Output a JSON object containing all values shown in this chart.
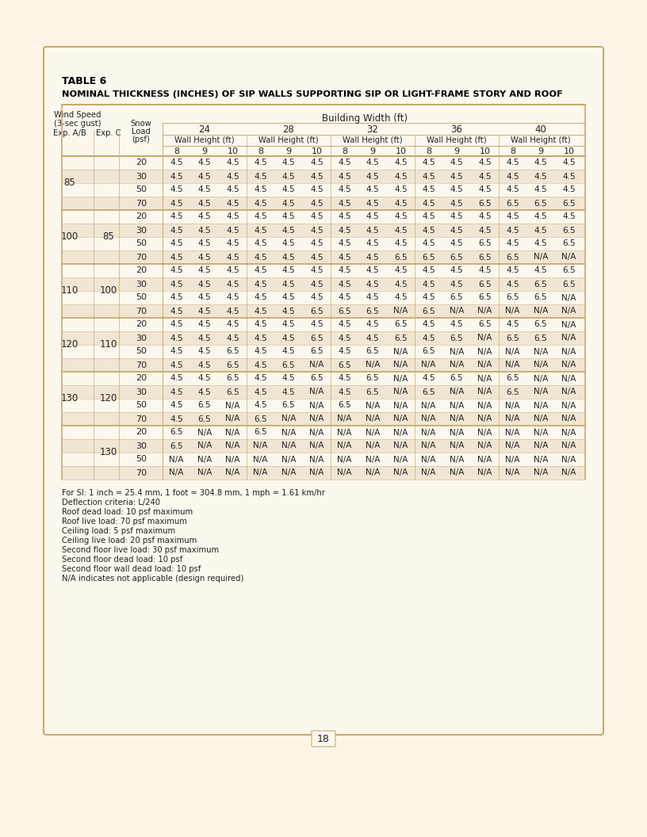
{
  "title": "TABLE 6",
  "subtitle": "NOMINAL THICKNESS (INCHES) OF SIP WALLS SUPPORTING SIP OR LIGHT-FRAME STORY AND ROOF",
  "building_widths": [
    "24",
    "28",
    "32",
    "36",
    "40"
  ],
  "bg_color": "#fdf8ee",
  "border_color": "#c8a96e",
  "row_alt_color": "#f0e6d3",
  "text_color": "#222222",
  "rows": [
    {
      "wind_a": "85",
      "wind_b": "",
      "snow": "20",
      "data": [
        "4.5",
        "4.5",
        "4.5",
        "4.5",
        "4.5",
        "4.5",
        "4.5",
        "4.5",
        "4.5",
        "4.5",
        "4.5",
        "4.5",
        "4.5",
        "4.5",
        "4.5"
      ]
    },
    {
      "wind_a": "",
      "wind_b": "",
      "snow": "30",
      "data": [
        "4.5",
        "4.5",
        "4.5",
        "4.5",
        "4.5",
        "4.5",
        "4.5",
        "4.5",
        "4.5",
        "4.5",
        "4.5",
        "4.5",
        "4.5",
        "4.5",
        "4.5"
      ]
    },
    {
      "wind_a": "",
      "wind_b": "",
      "snow": "50",
      "data": [
        "4.5",
        "4.5",
        "4.5",
        "4.5",
        "4.5",
        "4.5",
        "4.5",
        "4.5",
        "4.5",
        "4.5",
        "4.5",
        "4.5",
        "4.5",
        "4.5",
        "4.5"
      ]
    },
    {
      "wind_a": "",
      "wind_b": "",
      "snow": "70",
      "data": [
        "4.5",
        "4.5",
        "4.5",
        "4.5",
        "4.5",
        "4.5",
        "4.5",
        "4.5",
        "4.5",
        "4.5",
        "4.5",
        "6.5",
        "6.5",
        "6.5",
        "6.5"
      ]
    },
    {
      "wind_a": "100",
      "wind_b": "85",
      "snow": "20",
      "data": [
        "4.5",
        "4.5",
        "4.5",
        "4.5",
        "4.5",
        "4.5",
        "4.5",
        "4.5",
        "4.5",
        "4.5",
        "4.5",
        "4.5",
        "4.5",
        "4.5",
        "4.5"
      ]
    },
    {
      "wind_a": "",
      "wind_b": "",
      "snow": "30",
      "data": [
        "4.5",
        "4.5",
        "4.5",
        "4.5",
        "4.5",
        "4.5",
        "4.5",
        "4.5",
        "4.5",
        "4.5",
        "4.5",
        "4.5",
        "4.5",
        "4.5",
        "6.5"
      ]
    },
    {
      "wind_a": "",
      "wind_b": "",
      "snow": "50",
      "data": [
        "4.5",
        "4.5",
        "4.5",
        "4.5",
        "4.5",
        "4.5",
        "4.5",
        "4.5",
        "4.5",
        "4.5",
        "4.5",
        "6.5",
        "4.5",
        "4.5",
        "6.5"
      ]
    },
    {
      "wind_a": "",
      "wind_b": "",
      "snow": "70",
      "data": [
        "4.5",
        "4.5",
        "4.5",
        "4.5",
        "4.5",
        "4.5",
        "4.5",
        "4.5",
        "6.5",
        "6.5",
        "6.5",
        "6.5",
        "6.5",
        "N/A",
        "N/A"
      ]
    },
    {
      "wind_a": "110",
      "wind_b": "100",
      "snow": "20",
      "data": [
        "4.5",
        "4.5",
        "4.5",
        "4.5",
        "4.5",
        "4.5",
        "4.5",
        "4.5",
        "4.5",
        "4.5",
        "4.5",
        "4.5",
        "4.5",
        "4.5",
        "6.5"
      ]
    },
    {
      "wind_a": "",
      "wind_b": "",
      "snow": "30",
      "data": [
        "4.5",
        "4.5",
        "4.5",
        "4.5",
        "4.5",
        "4.5",
        "4.5",
        "4.5",
        "4.5",
        "4.5",
        "4.5",
        "6.5",
        "4.5",
        "6.5",
        "6.5"
      ]
    },
    {
      "wind_a": "",
      "wind_b": "",
      "snow": "50",
      "data": [
        "4.5",
        "4.5",
        "4.5",
        "4.5",
        "4.5",
        "4.5",
        "4.5",
        "4.5",
        "4.5",
        "4.5",
        "6.5",
        "6.5",
        "6.5",
        "6.5",
        "N/A"
      ]
    },
    {
      "wind_a": "",
      "wind_b": "",
      "snow": "70",
      "data": [
        "4.5",
        "4.5",
        "4.5",
        "4.5",
        "4.5",
        "6.5",
        "6.5",
        "6.5",
        "N/A",
        "6.5",
        "N/A",
        "N/A",
        "N/A",
        "N/A",
        "N/A"
      ]
    },
    {
      "wind_a": "120",
      "wind_b": "110",
      "snow": "20",
      "data": [
        "4.5",
        "4.5",
        "4.5",
        "4.5",
        "4.5",
        "4.5",
        "4.5",
        "4.5",
        "6.5",
        "4.5",
        "4.5",
        "6.5",
        "4.5",
        "6.5",
        "N/A"
      ]
    },
    {
      "wind_a": "",
      "wind_b": "",
      "snow": "30",
      "data": [
        "4.5",
        "4.5",
        "4.5",
        "4.5",
        "4.5",
        "6.5",
        "4.5",
        "4.5",
        "6.5",
        "4.5",
        "6.5",
        "N/A",
        "6.5",
        "6.5",
        "N/A"
      ]
    },
    {
      "wind_a": "",
      "wind_b": "",
      "snow": "50",
      "data": [
        "4.5",
        "4.5",
        "6.5",
        "4.5",
        "4.5",
        "6.5",
        "4.5",
        "6.5",
        "N/A",
        "6.5",
        "N/A",
        "N/A",
        "N/A",
        "N/A",
        "N/A"
      ]
    },
    {
      "wind_a": "",
      "wind_b": "",
      "snow": "70",
      "data": [
        "4.5",
        "4.5",
        "6.5",
        "4.5",
        "6.5",
        "N/A",
        "6.5",
        "N/A",
        "N/A",
        "N/A",
        "N/A",
        "N/A",
        "N/A",
        "N/A",
        "N/A"
      ]
    },
    {
      "wind_a": "130",
      "wind_b": "120",
      "snow": "20",
      "data": [
        "4.5",
        "4.5",
        "6.5",
        "4.5",
        "4.5",
        "6.5",
        "4.5",
        "6.5",
        "N/A",
        "4.5",
        "6.5",
        "N/A",
        "6.5",
        "N/A",
        "N/A"
      ]
    },
    {
      "wind_a": "",
      "wind_b": "",
      "snow": "30",
      "data": [
        "4.5",
        "4.5",
        "6.5",
        "4.5",
        "4.5",
        "N/A",
        "4.5",
        "6.5",
        "N/A",
        "6.5",
        "N/A",
        "N/A",
        "6.5",
        "N/A",
        "N/A"
      ]
    },
    {
      "wind_a": "",
      "wind_b": "",
      "snow": "50",
      "data": [
        "4.5",
        "6.5",
        "N/A",
        "4.5",
        "6.5",
        "N/A",
        "6.5",
        "N/A",
        "N/A",
        "N/A",
        "N/A",
        "N/A",
        "N/A",
        "N/A",
        "N/A"
      ]
    },
    {
      "wind_a": "",
      "wind_b": "",
      "snow": "70",
      "data": [
        "4.5",
        "6.5",
        "N/A",
        "6.5",
        "N/A",
        "N/A",
        "N/A",
        "N/A",
        "N/A",
        "N/A",
        "N/A",
        "N/A",
        "N/A",
        "N/A",
        "N/A"
      ]
    },
    {
      "wind_a": "",
      "wind_b": "130",
      "snow": "20",
      "data": [
        "6.5",
        "N/A",
        "N/A",
        "6.5",
        "N/A",
        "N/A",
        "N/A",
        "N/A",
        "N/A",
        "N/A",
        "N/A",
        "N/A",
        "N/A",
        "N/A",
        "N/A"
      ]
    },
    {
      "wind_a": "",
      "wind_b": "",
      "snow": "30",
      "data": [
        "6.5",
        "N/A",
        "N/A",
        "N/A",
        "N/A",
        "N/A",
        "N/A",
        "N/A",
        "N/A",
        "N/A",
        "N/A",
        "N/A",
        "N/A",
        "N/A",
        "N/A"
      ]
    },
    {
      "wind_a": "",
      "wind_b": "",
      "snow": "50",
      "data": [
        "N/A",
        "N/A",
        "N/A",
        "N/A",
        "N/A",
        "N/A",
        "N/A",
        "N/A",
        "N/A",
        "N/A",
        "N/A",
        "N/A",
        "N/A",
        "N/A",
        "N/A"
      ]
    },
    {
      "wind_a": "",
      "wind_b": "",
      "snow": "70",
      "data": [
        "N/A",
        "N/A",
        "N/A",
        "N/A",
        "N/A",
        "N/A",
        "N/A",
        "N/A",
        "N/A",
        "N/A",
        "N/A",
        "N/A",
        "N/A",
        "N/A",
        "N/A"
      ]
    }
  ],
  "footnotes": [
    "For SI: 1 inch = 25.4 mm, 1 foot = 304.8 mm, 1 mph = 1.61 km/hr",
    "Deflection criteria: L/240",
    "Roof dead load: 10 psf maximum",
    "Roof live load: 70 psf maximum",
    "Ceiling load: 5 psf maximum",
    "Ceiling live load: 20 psf maximum",
    "Second floor live load: 30 psf maximum",
    "Second floor dead load: 10 psf",
    "Second floor wall dead load: 10 psf",
    "N/A indicates not applicable (design required)"
  ],
  "page_number": "18"
}
